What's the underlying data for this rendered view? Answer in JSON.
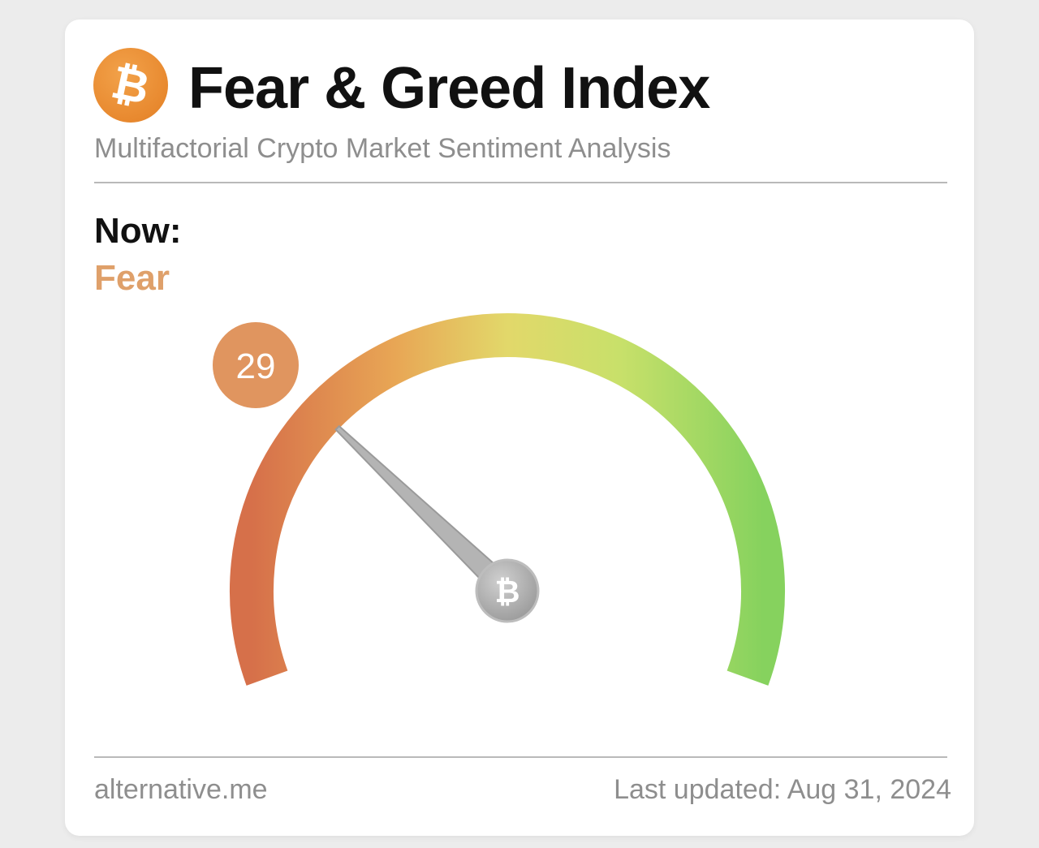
{
  "header": {
    "logo_symbol": "₿",
    "title": "Fear & Greed Index",
    "subtitle": "Multifactorial Crypto Market Sentiment Analysis"
  },
  "status": {
    "now_label": "Now:",
    "classification": "Fear",
    "classification_color": "#dfa06a"
  },
  "gauge": {
    "value": 29,
    "min": 0,
    "max": 100,
    "badge_color": "#e0955f",
    "hub_symbol": "₿",
    "gradient_colors": [
      "#d6704a",
      "#e8a655",
      "#e2d86a",
      "#c8e06a",
      "#86d25e"
    ]
  },
  "footer": {
    "source": "alternative.me",
    "last_updated": "Last updated: Aug 31, 2024"
  }
}
